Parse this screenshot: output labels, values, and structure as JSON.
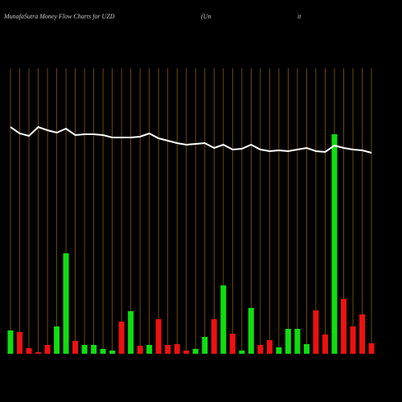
{
  "chart_data": {
    "type": "bar",
    "title": "MunafaSutra  Money Flow  Charts for UZD",
    "subtitle": "(Un",
    "subtitle_end": "it",
    "ylim": [
      0,
      360
    ],
    "grid": true,
    "series": [
      {
        "type": "bar",
        "values": [
          29,
          27,
          7,
          2,
          11,
          34,
          125,
          16,
          11,
          11,
          6,
          4,
          40,
          53,
          10,
          11,
          43,
          11,
          12,
          4,
          6,
          21,
          43,
          85,
          25,
          4,
          57,
          11,
          17,
          8,
          31,
          31,
          12,
          54,
          24,
          273,
          68,
          34,
          49,
          13
        ],
        "colors": [
          "#11dd11",
          "#ee1111",
          "#ee1111",
          "#ee1111",
          "#ee1111",
          "#11dd11",
          "#11dd11",
          "#ee1111",
          "#11dd11",
          "#11dd11",
          "#11dd11",
          "#11dd11",
          "#ee1111",
          "#11dd11",
          "#ee1111",
          "#11dd11",
          "#ee1111",
          "#ee1111",
          "#ee1111",
          "#ee1111",
          "#11dd11",
          "#11dd11",
          "#ee1111",
          "#11dd11",
          "#ee1111",
          "#11dd11",
          "#11dd11",
          "#ee1111",
          "#ee1111",
          "#11dd11",
          "#11dd11",
          "#11dd11",
          "#11dd11",
          "#ee1111",
          "#ee1111",
          "#11dd11",
          "#ee1111",
          "#ee1111",
          "#ee1111",
          "#ee1111"
        ]
      },
      {
        "type": "line",
        "color": "#ffffff",
        "values": [
          282,
          274,
          271,
          282,
          278,
          275,
          280,
          272,
          273,
          273,
          272,
          269,
          269,
          269,
          270,
          274,
          268,
          265,
          262,
          260,
          261,
          262,
          256,
          260,
          254,
          255,
          260,
          254,
          252,
          253,
          252,
          254,
          256,
          252,
          251,
          259,
          256,
          254,
          253,
          250
        ]
      }
    ]
  }
}
